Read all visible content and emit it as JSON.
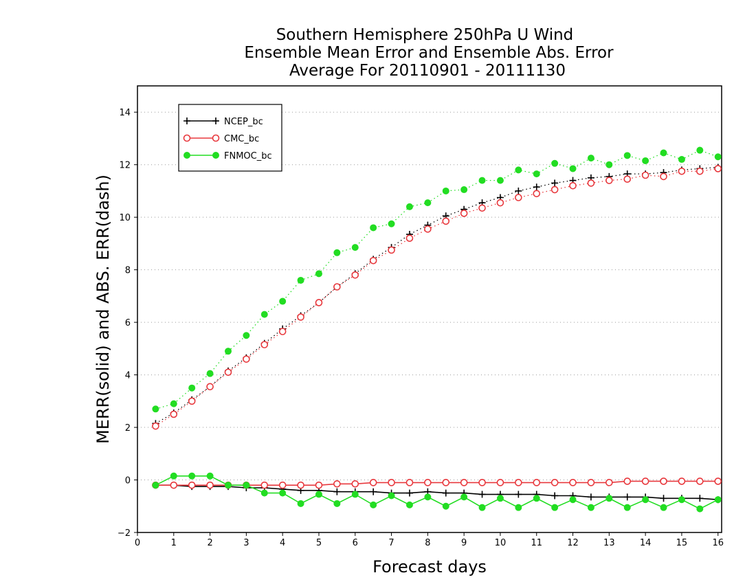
{
  "chart_data": {
    "type": "line",
    "title_lines": [
      "Southern Hemisphere 250hPa U Wind",
      "Ensemble Mean Error and Ensemble Abs. Error",
      "Average For 20110901 - 20111130"
    ],
    "xlabel": "Forecast days",
    "ylabel": "MERR(solid) and ABS. ERR(dash)",
    "xlim": [
      0,
      16.1
    ],
    "ylim": [
      -2,
      15
    ],
    "xticks": [
      "0",
      "1",
      "2",
      "3",
      "4",
      "5",
      "6",
      "7",
      "8",
      "9",
      "10",
      "11",
      "12",
      "13",
      "14",
      "15",
      "16"
    ],
    "yticks": [
      "−2",
      "0",
      "2",
      "4",
      "6",
      "8",
      "10",
      "12",
      "14"
    ],
    "grid": "horizontal dotted",
    "legend_position": "top-left",
    "x": [
      0.5,
      1,
      1.5,
      2,
      2.5,
      3,
      3.5,
      4,
      4.5,
      5,
      5.5,
      6,
      6.5,
      7,
      7.5,
      8,
      8.5,
      9,
      9.5,
      10,
      10.5,
      11,
      11.5,
      12,
      12.5,
      13,
      13.5,
      14,
      14.5,
      15,
      15.5,
      16
    ],
    "series": [
      {
        "name": "NCEP_bc",
        "color": "#000000",
        "marker": "plus",
        "merr": [
          -0.2,
          -0.2,
          -0.25,
          -0.25,
          -0.25,
          -0.3,
          -0.3,
          -0.35,
          -0.4,
          -0.4,
          -0.45,
          -0.45,
          -0.45,
          -0.5,
          -0.5,
          -0.45,
          -0.5,
          -0.5,
          -0.55,
          -0.55,
          -0.55,
          -0.55,
          -0.6,
          -0.6,
          -0.65,
          -0.65,
          -0.65,
          -0.65,
          -0.7,
          -0.7,
          -0.7,
          -0.75
        ],
        "abserr": [
          2.15,
          2.55,
          3.05,
          3.55,
          4.15,
          4.65,
          5.2,
          5.75,
          6.25,
          6.75,
          7.35,
          7.85,
          8.4,
          8.85,
          9.35,
          9.7,
          10.05,
          10.3,
          10.55,
          10.75,
          11.0,
          11.15,
          11.3,
          11.4,
          11.5,
          11.55,
          11.65,
          11.65,
          11.7,
          11.8,
          11.85,
          11.9
        ]
      },
      {
        "name": "CMC_bc",
        "color": "#e8383d",
        "marker": "circle",
        "merr": [
          -0.2,
          -0.2,
          -0.2,
          -0.2,
          -0.2,
          -0.2,
          -0.2,
          -0.2,
          -0.2,
          -0.2,
          -0.15,
          -0.15,
          -0.1,
          -0.1,
          -0.1,
          -0.1,
          -0.1,
          -0.1,
          -0.1,
          -0.1,
          -0.1,
          -0.1,
          -0.1,
          -0.1,
          -0.1,
          -0.1,
          -0.05,
          -0.05,
          -0.05,
          -0.05,
          -0.05,
          -0.05
        ],
        "abserr": [
          2.05,
          2.5,
          3.0,
          3.55,
          4.1,
          4.6,
          5.15,
          5.65,
          6.2,
          6.75,
          7.35,
          7.8,
          8.35,
          8.75,
          9.2,
          9.55,
          9.85,
          10.15,
          10.35,
          10.55,
          10.75,
          10.9,
          11.05,
          11.2,
          11.3,
          11.4,
          11.45,
          11.6,
          11.55,
          11.75,
          11.75,
          11.85
        ]
      },
      {
        "name": "FNMOC_bc",
        "color": "#22dd22",
        "marker": "dot",
        "merr": [
          -0.2,
          0.15,
          0.15,
          0.15,
          -0.2,
          -0.2,
          -0.5,
          -0.5,
          -0.9,
          -0.55,
          -0.9,
          -0.55,
          -0.95,
          -0.6,
          -0.95,
          -0.65,
          -1.0,
          -0.65,
          -1.05,
          -0.7,
          -1.05,
          -0.7,
          -1.05,
          -0.75,
          -1.05,
          -0.7,
          -1.05,
          -0.75,
          -1.05,
          -0.75,
          -1.1,
          -0.75
        ],
        "abserr": [
          2.7,
          2.9,
          3.5,
          4.05,
          4.9,
          5.5,
          6.3,
          6.8,
          7.6,
          7.85,
          8.65,
          8.85,
          9.6,
          9.75,
          10.4,
          10.55,
          11.0,
          11.05,
          11.4,
          11.4,
          11.8,
          11.65,
          12.05,
          11.85,
          12.25,
          12.0,
          12.35,
          12.15,
          12.45,
          12.2,
          12.55,
          12.3
        ]
      }
    ]
  }
}
